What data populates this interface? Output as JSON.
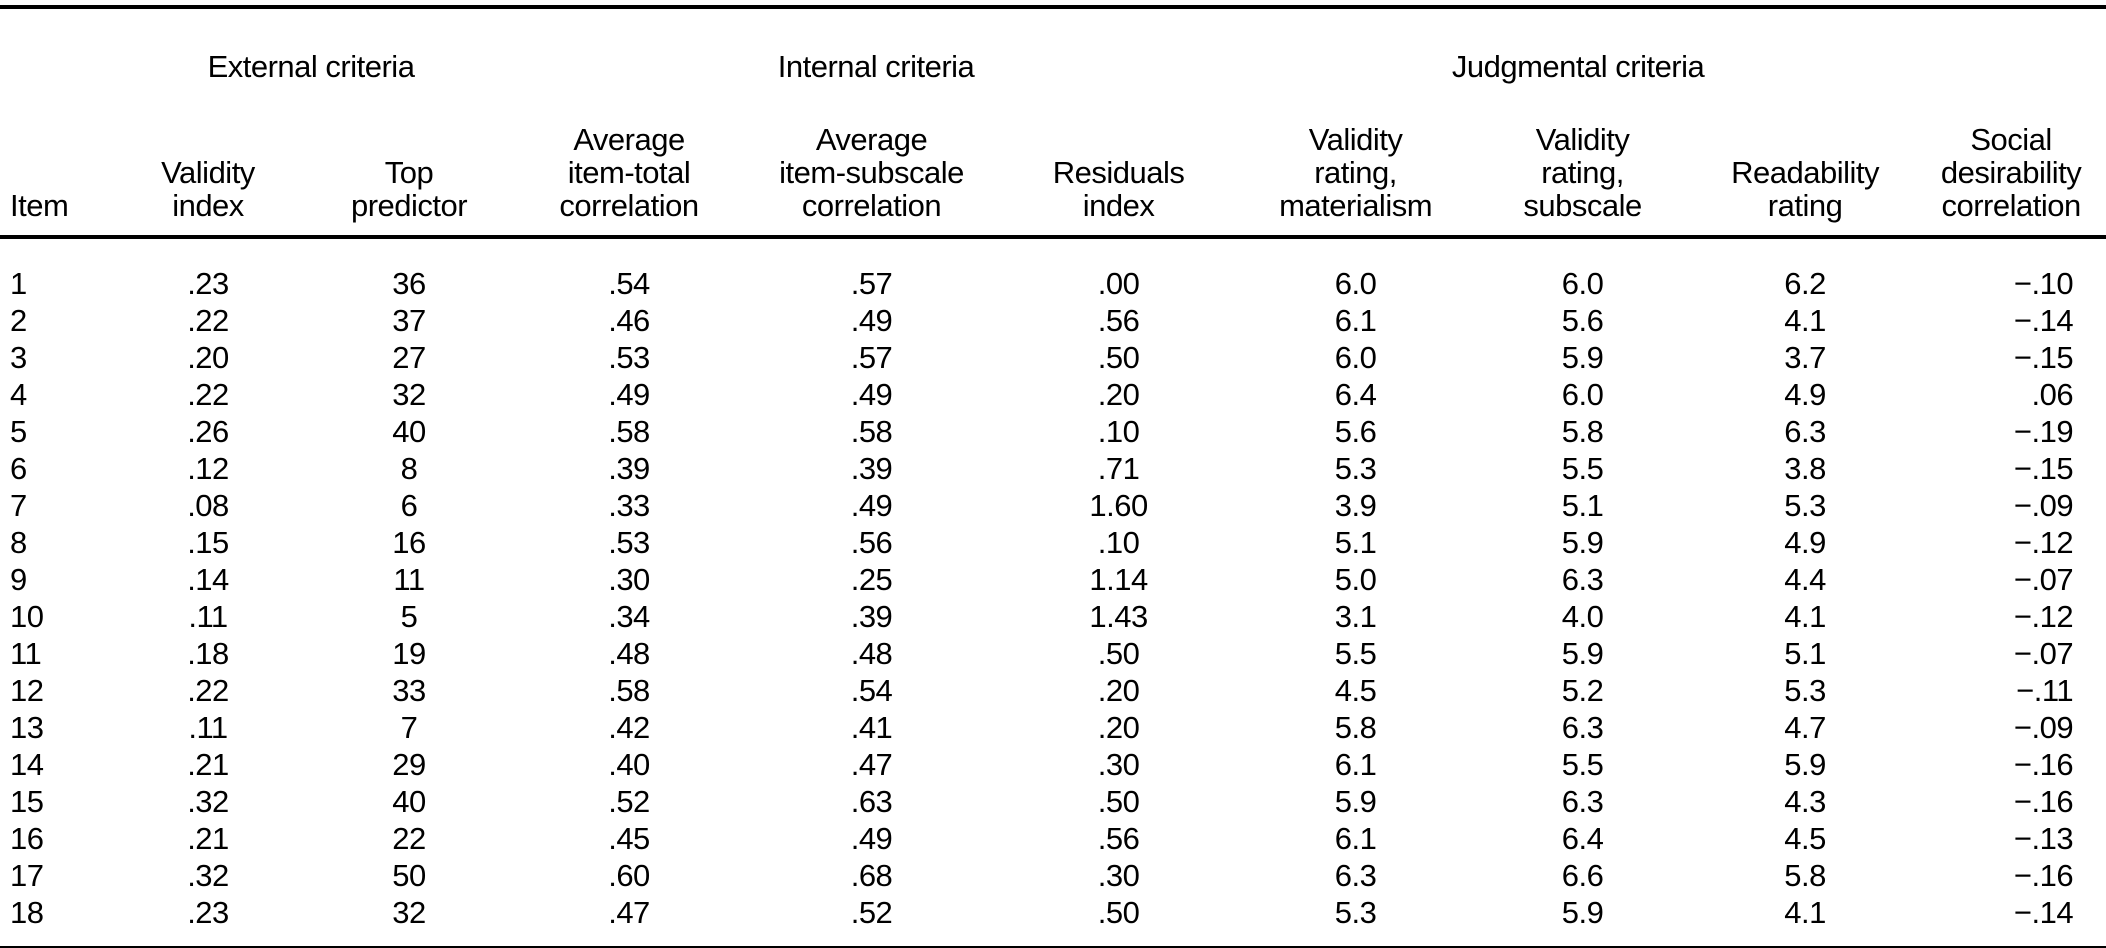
{
  "colors": {
    "text": "#000000",
    "background": "#ffffff",
    "rule": "#000000"
  },
  "table": {
    "groups": [
      {
        "label": "External criteria"
      },
      {
        "label": "Internal criteria"
      },
      {
        "label": "Judgmental criteria"
      }
    ],
    "columns": [
      "Item",
      "Validity\nindex",
      "Top\npredictor",
      "Average\nitem-total\ncorrelation",
      "Average\nitem-subscale\ncorrelation",
      "Residuals\nindex",
      "Validity\nrating,\nmaterialism",
      "Validity\nrating,\nsubscale",
      "Readability\nrating",
      "Social\ndesirability\ncorrelation"
    ],
    "rows": [
      [
        "1",
        ".23",
        "36",
        ".54",
        ".57",
        ".00",
        "6.0",
        "6.0",
        "6.2",
        "−.10"
      ],
      [
        "2",
        ".22",
        "37",
        ".46",
        ".49",
        ".56",
        "6.1",
        "5.6",
        "4.1",
        "−.14"
      ],
      [
        "3",
        ".20",
        "27",
        ".53",
        ".57",
        ".50",
        "6.0",
        "5.9",
        "3.7",
        "−.15"
      ],
      [
        "4",
        ".22",
        "32",
        ".49",
        ".49",
        ".20",
        "6.4",
        "6.0",
        "4.9",
        ".06"
      ],
      [
        "5",
        ".26",
        "40",
        ".58",
        ".58",
        ".10",
        "5.6",
        "5.8",
        "6.3",
        "−.19"
      ],
      [
        "6",
        ".12",
        "8",
        ".39",
        ".39",
        ".71",
        "5.3",
        "5.5",
        "3.8",
        "−.15"
      ],
      [
        "7",
        ".08",
        "6",
        ".33",
        ".49",
        "1.60",
        "3.9",
        "5.1",
        "5.3",
        "−.09"
      ],
      [
        "8",
        ".15",
        "16",
        ".53",
        ".56",
        ".10",
        "5.1",
        "5.9",
        "4.9",
        "−.12"
      ],
      [
        "9",
        ".14",
        "11",
        ".30",
        ".25",
        "1.14",
        "5.0",
        "6.3",
        "4.4",
        "−.07"
      ],
      [
        "10",
        ".11",
        "5",
        ".34",
        ".39",
        "1.43",
        "3.1",
        "4.0",
        "4.1",
        "−.12"
      ],
      [
        "11",
        ".18",
        "19",
        ".48",
        ".48",
        ".50",
        "5.5",
        "5.9",
        "5.1",
        "−.07"
      ],
      [
        "12",
        ".22",
        "33",
        ".58",
        ".54",
        ".20",
        "4.5",
        "5.2",
        "5.3",
        "−.11"
      ],
      [
        "13",
        ".11",
        "7",
        ".42",
        ".41",
        ".20",
        "5.8",
        "6.3",
        "4.7",
        "−.09"
      ],
      [
        "14",
        ".21",
        "29",
        ".40",
        ".47",
        ".30",
        "6.1",
        "5.5",
        "5.9",
        "−.16"
      ],
      [
        "15",
        ".32",
        "40",
        ".52",
        ".63",
        ".50",
        "5.9",
        "6.3",
        "4.3",
        "−.16"
      ],
      [
        "16",
        ".21",
        "22",
        ".45",
        ".49",
        ".56",
        "6.1",
        "6.4",
        "4.5",
        "−.13"
      ],
      [
        "17",
        ".32",
        "50",
        ".60",
        ".68",
        ".30",
        "6.3",
        "6.6",
        "5.8",
        "−.16"
      ],
      [
        "18",
        ".23",
        "32",
        ".47",
        ".52",
        ".50",
        "5.3",
        "5.9",
        "4.1",
        "−.14"
      ]
    ]
  }
}
